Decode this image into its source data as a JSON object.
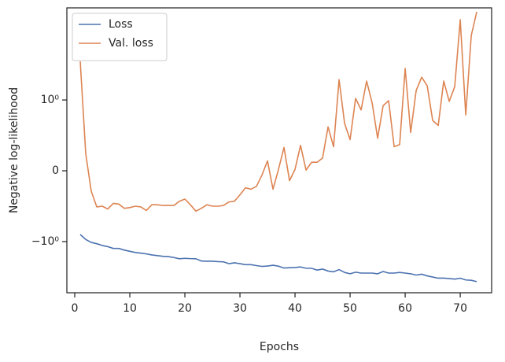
{
  "chart_data": {
    "type": "line",
    "xlabel": "Epochs",
    "ylabel": "Negative log-likelihood",
    "yscale": "symlog",
    "linthresh": 1,
    "legend": "upper left",
    "x": [
      1,
      2,
      3,
      4,
      5,
      6,
      7,
      8,
      9,
      10,
      11,
      12,
      13,
      14,
      15,
      16,
      17,
      18,
      19,
      20,
      21,
      22,
      23,
      24,
      25,
      26,
      27,
      28,
      29,
      30,
      31,
      32,
      33,
      34,
      35,
      36,
      37,
      38,
      39,
      40,
      41,
      42,
      43,
      44,
      45,
      46,
      47,
      48,
      49,
      50,
      51,
      52,
      53,
      54,
      55,
      56,
      57,
      58,
      59,
      60,
      61,
      62,
      63,
      64,
      65,
      66,
      67,
      68,
      69,
      70,
      71,
      72,
      73
    ],
    "xlim": [
      -1.43,
      75.7
    ],
    "xticks": [
      0,
      10,
      20,
      30,
      40,
      50,
      60,
      70
    ],
    "ylim": [
      -6.35,
      27.9
    ],
    "yticks": [
      {
        "value": -1,
        "label": "−10⁰"
      },
      0,
      {
        "value": 1,
        "label": "10⁰"
      }
    ],
    "series": [
      {
        "name": "Loss",
        "color": "#4c72b0",
        "values": [
          -0.9,
          -0.97,
          -1.03,
          -1.08,
          -1.15,
          -1.2,
          -1.28,
          -1.28,
          -1.36,
          -1.42,
          -1.48,
          -1.52,
          -1.56,
          -1.62,
          -1.66,
          -1.7,
          -1.72,
          -1.78,
          -1.86,
          -1.83,
          -1.85,
          -1.86,
          -2.02,
          -2.03,
          -2.03,
          -2.06,
          -2.08,
          -2.22,
          -2.15,
          -2.22,
          -2.3,
          -2.3,
          -2.38,
          -2.45,
          -2.42,
          -2.35,
          -2.43,
          -2.6,
          -2.57,
          -2.55,
          -2.5,
          -2.62,
          -2.62,
          -2.8,
          -2.7,
          -2.9,
          -2.98,
          -2.75,
          -3.05,
          -3.2,
          -3.02,
          -3.12,
          -3.12,
          -3.12,
          -3.2,
          -2.95,
          -3.12,
          -3.12,
          -3.05,
          -3.12,
          -3.2,
          -3.35,
          -3.25,
          -3.45,
          -3.6,
          -3.75,
          -3.75,
          -3.8,
          -3.88,
          -3.75,
          -4.0,
          -4.05,
          -4.25
        ]
      },
      {
        "name": "Val. loss",
        "color": "#dd8452",
        "values": [
          4.03,
          0.24,
          -0.29,
          -0.51,
          -0.5,
          -0.54,
          -0.46,
          -0.47,
          -0.53,
          -0.52,
          -0.5,
          -0.51,
          -0.56,
          -0.48,
          -0.48,
          -0.49,
          -0.49,
          -0.49,
          -0.43,
          -0.4,
          -0.48,
          -0.57,
          -0.53,
          -0.48,
          -0.5,
          -0.5,
          -0.49,
          -0.44,
          -0.43,
          -0.34,
          -0.24,
          -0.26,
          -0.22,
          -0.06,
          0.14,
          -0.26,
          0.02,
          0.33,
          -0.14,
          0.02,
          0.36,
          0.01,
          0.12,
          0.12,
          0.18,
          0.62,
          0.34,
          2.09,
          0.67,
          0.44,
          1.06,
          0.86,
          1.98,
          0.96,
          0.46,
          0.92,
          0.99,
          0.34,
          0.37,
          3.12,
          0.54,
          1.41,
          2.28,
          1.67,
          0.71,
          0.64,
          1.98,
          0.98,
          1.62,
          18.2,
          0.79,
          10.3,
          24.2
        ]
      }
    ]
  }
}
